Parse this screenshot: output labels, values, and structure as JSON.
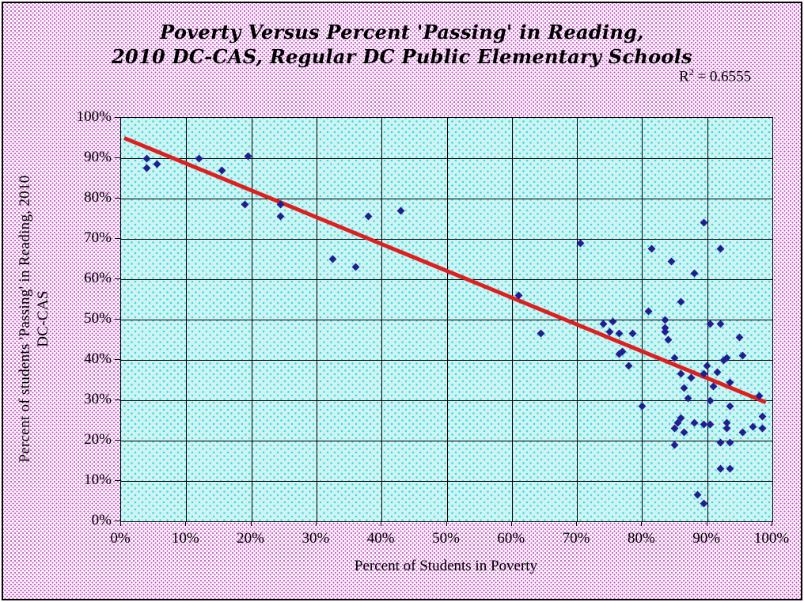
{
  "title": {
    "line1": "Poverty Versus Percent 'Passing' in Reading,",
    "line2": "2010 DC-CAS, Regular DC Public Elementary Schools"
  },
  "r_squared": {
    "base": "R",
    "sup": "2",
    "rest": " = 0.6555"
  },
  "axes": {
    "x": {
      "title": "Percent of Students in Poverty",
      "ticks": [
        "0%",
        "10%",
        "20%",
        "30%",
        "40%",
        "50%",
        "60%",
        "70%",
        "80%",
        "90%",
        "100%"
      ]
    },
    "y": {
      "title_line1": "Percent of students 'Passing' in Reading, 2010",
      "title_line2": "DC-CAS",
      "ticks": [
        "100%",
        "90%",
        "80%",
        "70%",
        "60%",
        "50%",
        "40%",
        "30%",
        "20%",
        "10%",
        "0%"
      ]
    }
  },
  "chart_data": {
    "type": "scatter",
    "title": "Poverty Versus Percent 'Passing' in Reading, 2010 DC-CAS, Regular DC Public Elementary Schools",
    "xlabel": "Percent of Students in Poverty",
    "ylabel": "Percent of students 'Passing' in Reading, 2010 DC-CAS",
    "xlim": [
      0,
      100
    ],
    "ylim": [
      0,
      100
    ],
    "x_tick_step": 10,
    "y_tick_step": 10,
    "grid": true,
    "legend": "none",
    "r_squared": 0.6555,
    "points": [
      [
        4,
        90
      ],
      [
        4,
        87.5
      ],
      [
        5.5,
        88.5
      ],
      [
        12,
        90
      ],
      [
        15.5,
        87
      ],
      [
        19.5,
        90.5
      ],
      [
        19,
        78.5
      ],
      [
        24.5,
        78.5
      ],
      [
        24.5,
        75.5
      ],
      [
        32.5,
        65
      ],
      [
        36,
        63
      ],
      [
        38,
        75.5
      ],
      [
        43,
        77
      ],
      [
        61,
        56
      ],
      [
        64.5,
        46.5
      ],
      [
        70.5,
        69
      ],
      [
        81.5,
        67.5
      ],
      [
        84.5,
        64.5
      ],
      [
        88,
        61.5
      ],
      [
        89.5,
        74
      ],
      [
        92,
        67.5
      ],
      [
        86,
        54.5
      ],
      [
        81,
        52
      ],
      [
        74,
        49
      ],
      [
        75.5,
        49.5
      ],
      [
        75,
        47
      ],
      [
        76.5,
        46.5
      ],
      [
        78.5,
        46.5
      ],
      [
        77,
        42
      ],
      [
        76.5,
        41.5
      ],
      [
        78,
        38.5
      ],
      [
        83.5,
        50
      ],
      [
        83.5,
        48
      ],
      [
        83.5,
        47
      ],
      [
        84,
        45
      ],
      [
        90.5,
        49
      ],
      [
        92,
        49
      ],
      [
        95,
        45.5
      ],
      [
        85,
        40.5
      ],
      [
        92.5,
        40
      ],
      [
        93,
        40.5
      ],
      [
        95.5,
        41
      ],
      [
        90,
        38.5
      ],
      [
        89.5,
        36.5
      ],
      [
        91.5,
        37
      ],
      [
        86,
        36.5
      ],
      [
        87.5,
        35.5
      ],
      [
        86.5,
        33
      ],
      [
        91,
        33.5
      ],
      [
        93.5,
        34.5
      ],
      [
        87,
        30.5
      ],
      [
        90.5,
        30
      ],
      [
        98,
        31
      ],
      [
        93.5,
        28.5
      ],
      [
        80,
        28.5
      ],
      [
        86,
        25.5
      ],
      [
        85.5,
        24.5
      ],
      [
        85,
        23
      ],
      [
        86.5,
        22
      ],
      [
        88,
        24.5
      ],
      [
        89.5,
        24
      ],
      [
        90.5,
        24
      ],
      [
        93,
        24.5
      ],
      [
        93,
        23
      ],
      [
        97,
        23.5
      ],
      [
        98.5,
        26
      ],
      [
        98.5,
        23
      ],
      [
        95.5,
        22
      ],
      [
        85,
        19
      ],
      [
        92,
        19.5
      ],
      [
        93.5,
        19.5
      ],
      [
        92,
        13
      ],
      [
        93.5,
        13
      ],
      [
        88.5,
        6.5
      ],
      [
        89.5,
        4.5
      ]
    ],
    "trendline": {
      "x_start": 0,
      "y_start": 95,
      "x_end": 99,
      "y_end": 29.5
    },
    "colors": {
      "marker": "#1f1f8f",
      "trend_line": "#dc2020",
      "gridline": "#000000",
      "plot_background": "#cff3f3",
      "plot_pattern": "#35dede",
      "outer_pattern": "#c24ec2",
      "text": "#000000"
    }
  }
}
